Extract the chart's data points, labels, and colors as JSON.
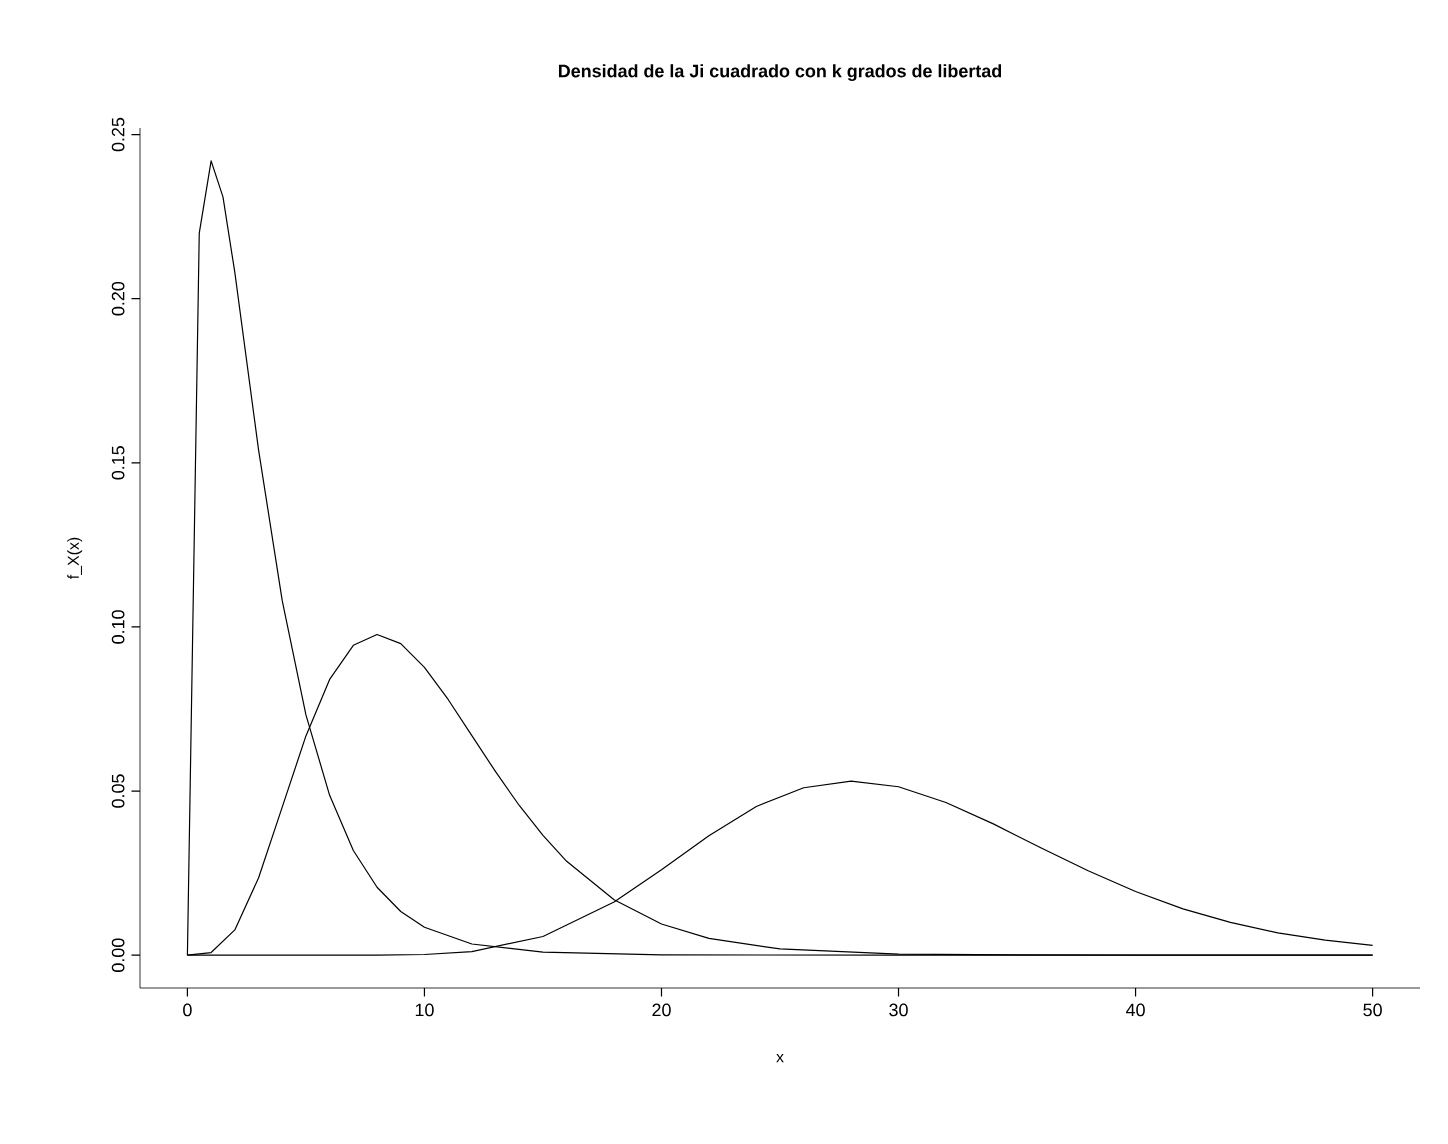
{
  "chart_data": {
    "type": "line",
    "title": "Densidad de la Ji cuadrado con k grados de libertad",
    "xlabel": "x",
    "ylabel": "f_X(x)",
    "series": [
      {
        "color": "#000000",
        "x": [
          0,
          0.5,
          1,
          1.5,
          2,
          3,
          4,
          5,
          6,
          7,
          8,
          9,
          10,
          12,
          15,
          20,
          30,
          50
        ],
        "values": [
          0,
          0.22,
          0.242,
          0.231,
          0.208,
          0.154,
          0.108,
          0.0732,
          0.0487,
          0.0319,
          0.0207,
          0.0133,
          0.0085,
          0.0034,
          0.0009,
          0.0001,
          0,
          0
        ]
      },
      {
        "color": "#000000",
        "x": [
          0,
          1,
          2,
          3,
          4,
          5,
          6,
          7,
          8,
          9,
          10,
          11,
          12,
          13,
          14,
          15,
          16,
          18,
          20,
          22,
          25,
          30,
          35,
          40,
          50
        ],
        "values": [
          0,
          0.0008,
          0.0077,
          0.0235,
          0.0451,
          0.0668,
          0.084,
          0.0944,
          0.0977,
          0.0949,
          0.0877,
          0.0779,
          0.0669,
          0.0559,
          0.0456,
          0.0365,
          0.0286,
          0.0169,
          0.0095,
          0.0051,
          0.0019,
          0.0003,
          0.0001,
          0,
          0
        ]
      },
      {
        "color": "#000000",
        "x": [
          0,
          5,
          8,
          10,
          12,
          15,
          18,
          20,
          22,
          24,
          26,
          28,
          30,
          32,
          34,
          36,
          38,
          40,
          42,
          44,
          46,
          48,
          50
        ],
        "values": [
          0,
          0,
          0,
          0.0002,
          0.0011,
          0.0057,
          0.0162,
          0.026,
          0.0364,
          0.0453,
          0.051,
          0.053,
          0.0513,
          0.0465,
          0.04,
          0.0327,
          0.0257,
          0.0194,
          0.0141,
          0.01,
          0.0068,
          0.0046,
          0.003
        ]
      }
    ],
    "xlim": [
      -2,
      52
    ],
    "ylim": [
      -0.01,
      0.252
    ],
    "xticks": [
      0,
      10,
      20,
      30,
      40,
      50
    ],
    "yticks": [
      {
        "value": 0,
        "label": "0.00"
      },
      {
        "value": 0.05,
        "label": "0.05"
      },
      {
        "value": 0.1,
        "label": "0.10"
      },
      {
        "value": 0.15,
        "label": "0.15"
      },
      {
        "value": 0.2,
        "label": "0.20"
      },
      {
        "value": 0.25,
        "label": "0.25"
      }
    ],
    "marker": "none",
    "line_style": "solid"
  }
}
